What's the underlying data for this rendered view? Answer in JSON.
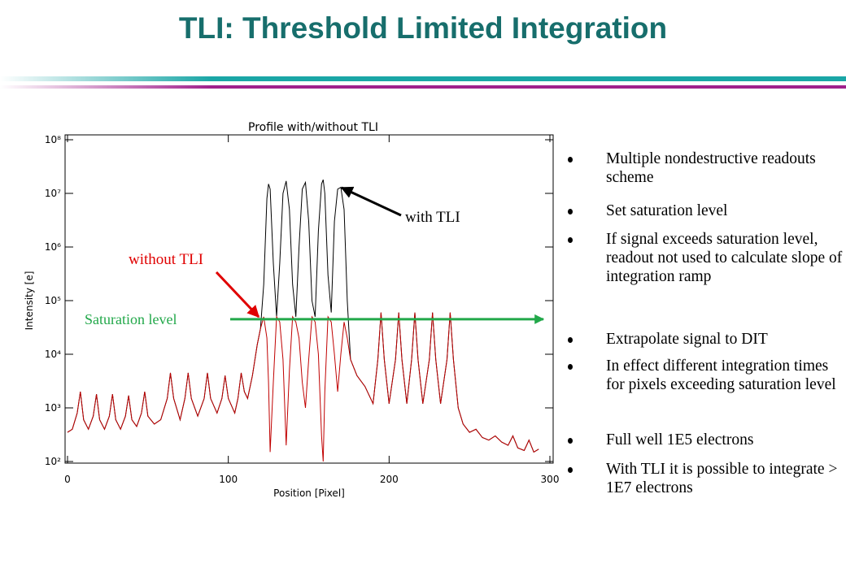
{
  "slide_title": "TLI: Threshold Limited Integration",
  "bullets": [
    "Multiple nondestructive readouts scheme",
    "Set saturation level",
    "If signal exceeds saturation level, readout not used to calculate slope of integration ramp",
    "Extrapolate signal to DIT",
    "In effect different integration times for pixels exceeding saturation level",
    "Full well 1E5 electrons",
    "With TLI it is possible to integrate  > 1E7 electrons"
  ],
  "chart_data": {
    "type": "line",
    "title": "Profile with/without TLI",
    "x_label": "Position [Pixel]",
    "y_label": "Intensity [e]",
    "log_y": true,
    "xlim": [
      0,
      300
    ],
    "ylim": [
      100,
      100000000
    ],
    "xticks": [
      0,
      100,
      200,
      300
    ],
    "yticks": [
      {
        "value": 100,
        "label": "10²"
      },
      {
        "value": 1000,
        "label": "10³"
      },
      {
        "value": 10000,
        "label": "10⁴"
      },
      {
        "value": 100000,
        "label": "10⁵"
      },
      {
        "value": 1000000,
        "label": "10⁶"
      },
      {
        "value": 10000000,
        "label": "10⁷"
      },
      {
        "value": 100000000,
        "label": "10⁸"
      }
    ],
    "x": [
      0,
      3,
      6,
      8,
      10,
      13,
      16,
      18,
      20,
      23,
      26,
      28,
      30,
      33,
      36,
      38,
      40,
      43,
      46,
      48,
      50,
      54,
      58,
      62,
      64,
      66,
      70,
      73,
      75,
      77,
      81,
      85,
      87,
      89,
      93,
      96,
      98,
      100,
      104,
      106,
      108,
      110,
      112,
      115,
      118,
      120,
      122,
      124,
      125,
      126,
      128,
      130,
      132,
      134,
      136,
      138,
      140,
      142,
      144,
      146,
      148,
      150,
      152,
      154,
      156,
      158,
      159,
      160,
      162,
      164,
      166,
      168,
      170,
      172,
      174,
      176,
      180,
      185,
      190,
      193,
      195,
      197,
      200,
      204,
      206,
      208,
      211,
      214,
      216,
      218,
      221,
      225,
      227,
      229,
      232,
      236,
      238,
      240,
      243,
      246,
      250,
      254,
      258,
      262,
      266,
      270,
      274,
      277,
      280,
      284,
      287,
      290,
      293
    ],
    "series": [
      {
        "name": "with TLI",
        "color": "#000000",
        "values": [
          350,
          400,
          800,
          2000,
          600,
          400,
          700,
          1800,
          600,
          400,
          700,
          1800,
          600,
          400,
          700,
          1700,
          600,
          450,
          800,
          2000,
          700,
          500,
          600,
          1500,
          4500,
          1500,
          600,
          1500,
          4500,
          1500,
          700,
          1500,
          4500,
          1500,
          800,
          1500,
          4000,
          1500,
          800,
          1500,
          4500,
          2000,
          1500,
          4000,
          15000,
          30000,
          200000,
          8000000,
          15000000,
          12000000,
          500000,
          50000,
          500000,
          10000000,
          17000000,
          5000000,
          200000,
          50000,
          1000000,
          12000000,
          16000000,
          3000000,
          100000,
          50000,
          2000000,
          15000000,
          18000000,
          10000000,
          300000,
          60000,
          3000000,
          12000000,
          13000000,
          5000000,
          100000,
          8000,
          4000,
          2500,
          1200,
          8000,
          60000,
          8000,
          1200,
          8000,
          60000,
          8000,
          1200,
          8000,
          60000,
          8000,
          1200,
          8000,
          60000,
          8000,
          1200,
          8000,
          60000,
          8000,
          1000,
          500,
          350,
          400,
          280,
          250,
          300,
          230,
          200,
          300,
          180,
          160,
          250,
          150,
          170
        ]
      },
      {
        "name": "without TLI",
        "color": "#c00000",
        "values": [
          350,
          400,
          800,
          2000,
          600,
          400,
          700,
          1800,
          600,
          400,
          700,
          1800,
          600,
          400,
          700,
          1700,
          600,
          450,
          800,
          2000,
          700,
          500,
          600,
          1500,
          4500,
          1500,
          600,
          1500,
          4500,
          1500,
          700,
          1500,
          4500,
          1500,
          800,
          1500,
          4000,
          1500,
          800,
          1500,
          4500,
          2000,
          1500,
          4000,
          15000,
          30000,
          50000,
          20000,
          3000,
          150,
          3000,
          50000,
          40000,
          8000,
          200,
          5000,
          50000,
          40000,
          20000,
          3000,
          1000,
          8000,
          50000,
          40000,
          10000,
          300,
          100,
          2000,
          50000,
          40000,
          10000,
          2000,
          10000,
          40000,
          20000,
          8000,
          4000,
          2500,
          1200,
          8000,
          60000,
          8000,
          1200,
          8000,
          60000,
          8000,
          1200,
          8000,
          60000,
          8000,
          1200,
          8000,
          60000,
          8000,
          1200,
          8000,
          60000,
          8000,
          1000,
          500,
          350,
          400,
          280,
          250,
          300,
          230,
          200,
          300,
          180,
          160,
          250,
          150,
          170
        ]
      }
    ],
    "saturation": {
      "label": "Saturation level",
      "value": 45000,
      "color": "#22a84a"
    }
  }
}
